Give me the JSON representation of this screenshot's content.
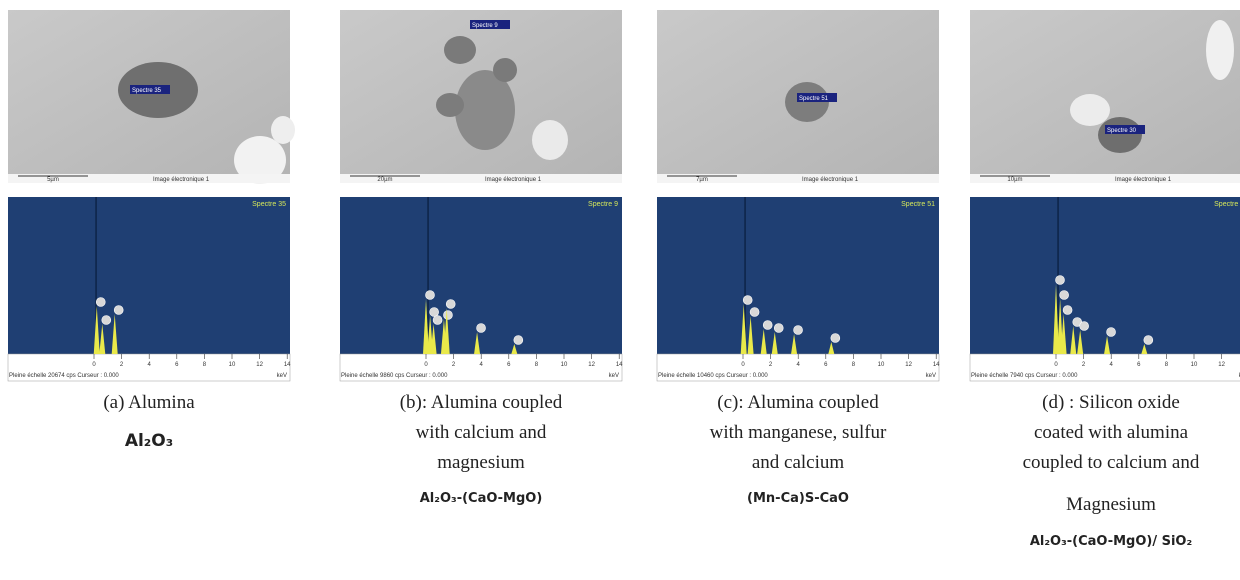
{
  "eds_axis": {
    "ticks": [
      0,
      2,
      4,
      6,
      8,
      10,
      12,
      14
    ],
    "unit": "keV"
  },
  "sem_image_label": "Image électronique 1",
  "panels": [
    {
      "sem": {
        "spectrum": "Spectre 35",
        "scale": "5µm"
      },
      "eds": {
        "spectrum": "Spectre 35",
        "footer": "Pleine échelle 20674 cps  Curseur : 0.000"
      },
      "caption": [
        "(a)  Alumina"
      ],
      "formula": "Al₂O₃"
    },
    {
      "sem": {
        "spectrum": "Spectre 9",
        "scale": "20µm"
      },
      "eds": {
        "spectrum": "Spectre 9",
        "footer": "Pleine échelle 9860 cps  Curseur : 0.000"
      },
      "caption": [
        "(b): Alumina coupled",
        "with calcium and",
        "magnesium"
      ],
      "formula": "Al₂O₃-(CaO-MgO)"
    },
    {
      "sem": {
        "spectrum": "Spectre 51",
        "scale": "7µm"
      },
      "eds": {
        "spectrum": "Spectre 51",
        "footer": "Pleine échelle 10460 cps  Curseur : 0.000"
      },
      "caption": [
        "(c): Alumina coupled",
        "with manganese, sulfur",
        "and calcium"
      ],
      "formula": "(Mn-Ca)S-CaO"
    },
    {
      "sem": {
        "spectrum": "Spectre 30",
        "scale": "10µm"
      },
      "eds": {
        "spectrum": "Spectre 30",
        "footer": "Pleine échelle 7940 cps  Curseur : 0.000"
      },
      "caption": [
        "(d) : Silicon oxide",
        "coated with alumina",
        "coupled to calcium and",
        "Magnesium"
      ],
      "formula": "Al₂O₃-(CaO-MgO)/ SiO₂"
    }
  ]
}
